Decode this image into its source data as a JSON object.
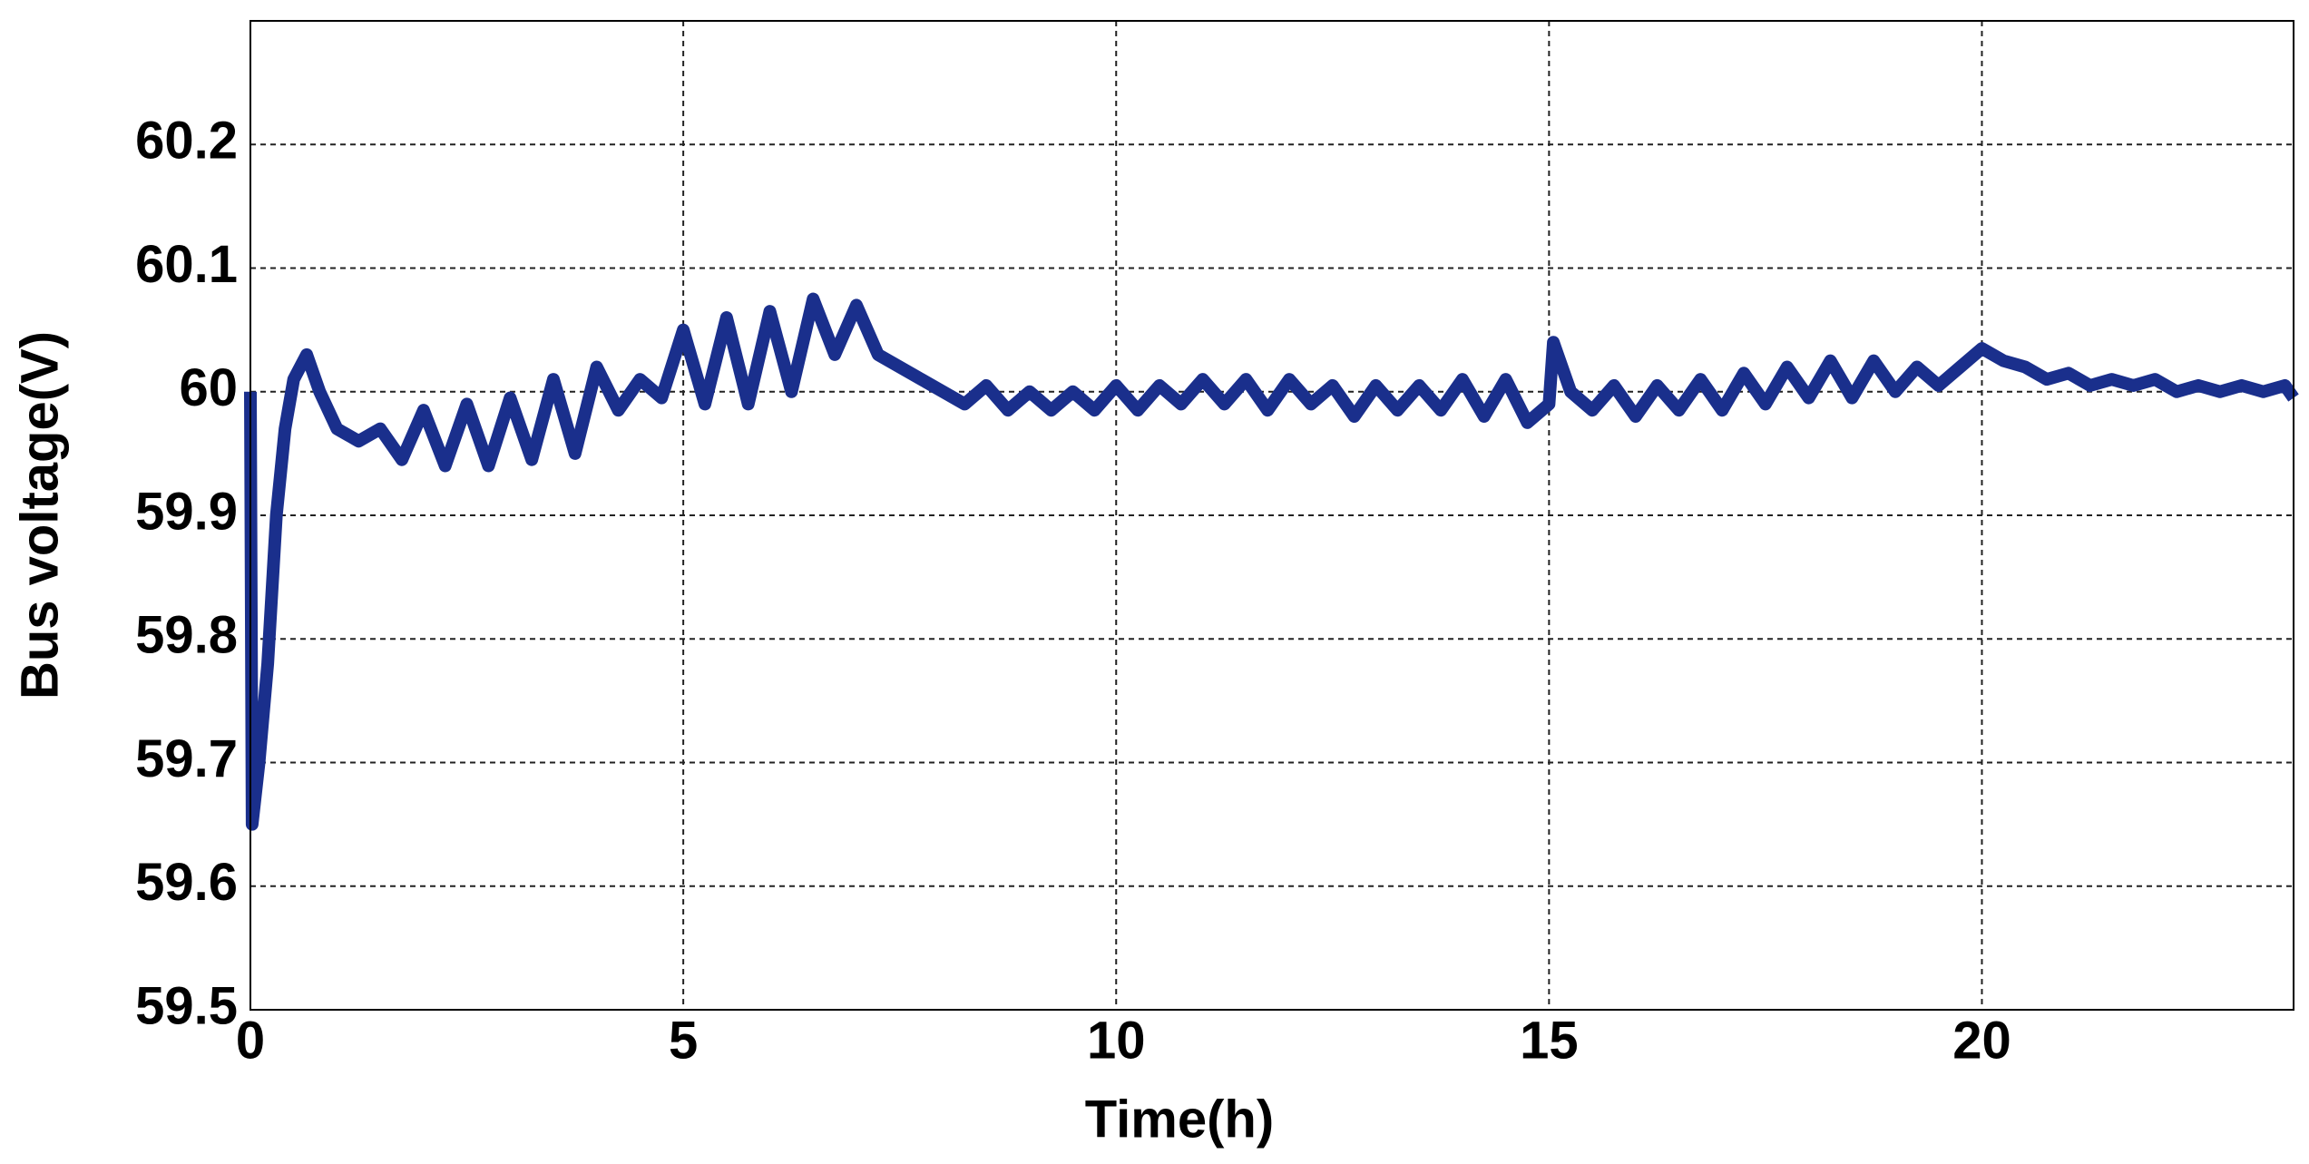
{
  "chart_data": {
    "type": "line",
    "x_label": "Time(h)",
    "y_label": "Bus voltage(V)",
    "xlim": [
      0,
      23.6
    ],
    "xticks": [
      0,
      5,
      10,
      15,
      20
    ],
    "ylim": [
      59.5,
      60.3
    ],
    "yticks": [
      59.5,
      59.6,
      59.7,
      59.8,
      59.9,
      60,
      60.1,
      60.2
    ],
    "grid": true,
    "x": [
      0,
      0.02,
      0.1,
      0.2,
      0.3,
      0.4,
      0.5,
      0.65,
      0.8,
      1.0,
      1.25,
      1.5,
      1.75,
      2.0,
      2.25,
      2.5,
      2.75,
      3.0,
      3.25,
      3.5,
      3.75,
      4.0,
      4.25,
      4.5,
      4.75,
      5.0,
      5.25,
      5.5,
      5.75,
      6.0,
      6.25,
      6.5,
      6.75,
      7.0,
      7.25,
      7.5,
      7.75,
      8.0,
      8.25,
      8.5,
      8.75,
      9.0,
      9.25,
      9.5,
      9.75,
      10.0,
      10.25,
      10.5,
      10.75,
      11.0,
      11.25,
      11.5,
      11.75,
      12.0,
      12.25,
      12.5,
      12.75,
      13.0,
      13.25,
      13.5,
      13.75,
      14.0,
      14.25,
      14.5,
      14.75,
      15.0,
      15.05,
      15.25,
      15.5,
      15.75,
      16.0,
      16.25,
      16.5,
      16.75,
      17.0,
      17.25,
      17.5,
      17.75,
      18.0,
      18.25,
      18.5,
      18.75,
      19.0,
      19.25,
      19.5,
      19.75,
      20.0,
      20.25,
      20.5,
      20.75,
      21.0,
      21.25,
      21.5,
      21.75,
      22.0,
      22.25,
      22.5,
      22.75,
      23.0,
      23.25,
      23.5,
      23.6
    ],
    "series": [
      {
        "color": "#1a2f8c",
        "values": [
          60.0,
          59.65,
          59.7,
          59.78,
          59.9,
          59.97,
          60.01,
          60.03,
          60.0,
          59.97,
          59.96,
          59.97,
          59.945,
          59.985,
          59.94,
          59.99,
          59.94,
          59.995,
          59.945,
          60.01,
          59.95,
          60.02,
          59.985,
          60.01,
          59.995,
          60.05,
          59.99,
          60.06,
          59.99,
          60.065,
          60.0,
          60.075,
          60.03,
          60.07,
          60.03,
          60.02,
          60.01,
          60.0,
          59.99,
          60.005,
          59.985,
          60.0,
          59.985,
          60.0,
          59.985,
          60.005,
          59.985,
          60.005,
          59.99,
          60.01,
          59.99,
          60.01,
          59.985,
          60.01,
          59.99,
          60.005,
          59.98,
          60.005,
          59.985,
          60.005,
          59.985,
          60.01,
          59.98,
          60.01,
          59.975,
          59.99,
          60.04,
          60.0,
          59.985,
          60.005,
          59.98,
          60.005,
          59.985,
          60.01,
          59.985,
          60.015,
          59.99,
          60.02,
          59.995,
          60.025,
          59.995,
          60.025,
          60.0,
          60.02,
          60.005,
          60.02,
          60.035,
          60.025,
          60.02,
          60.01,
          60.015,
          60.005,
          60.01,
          60.005,
          60.01,
          60.0,
          60.005,
          60.0,
          60.005,
          60.0,
          60.005,
          59.995
        ]
      }
    ]
  }
}
